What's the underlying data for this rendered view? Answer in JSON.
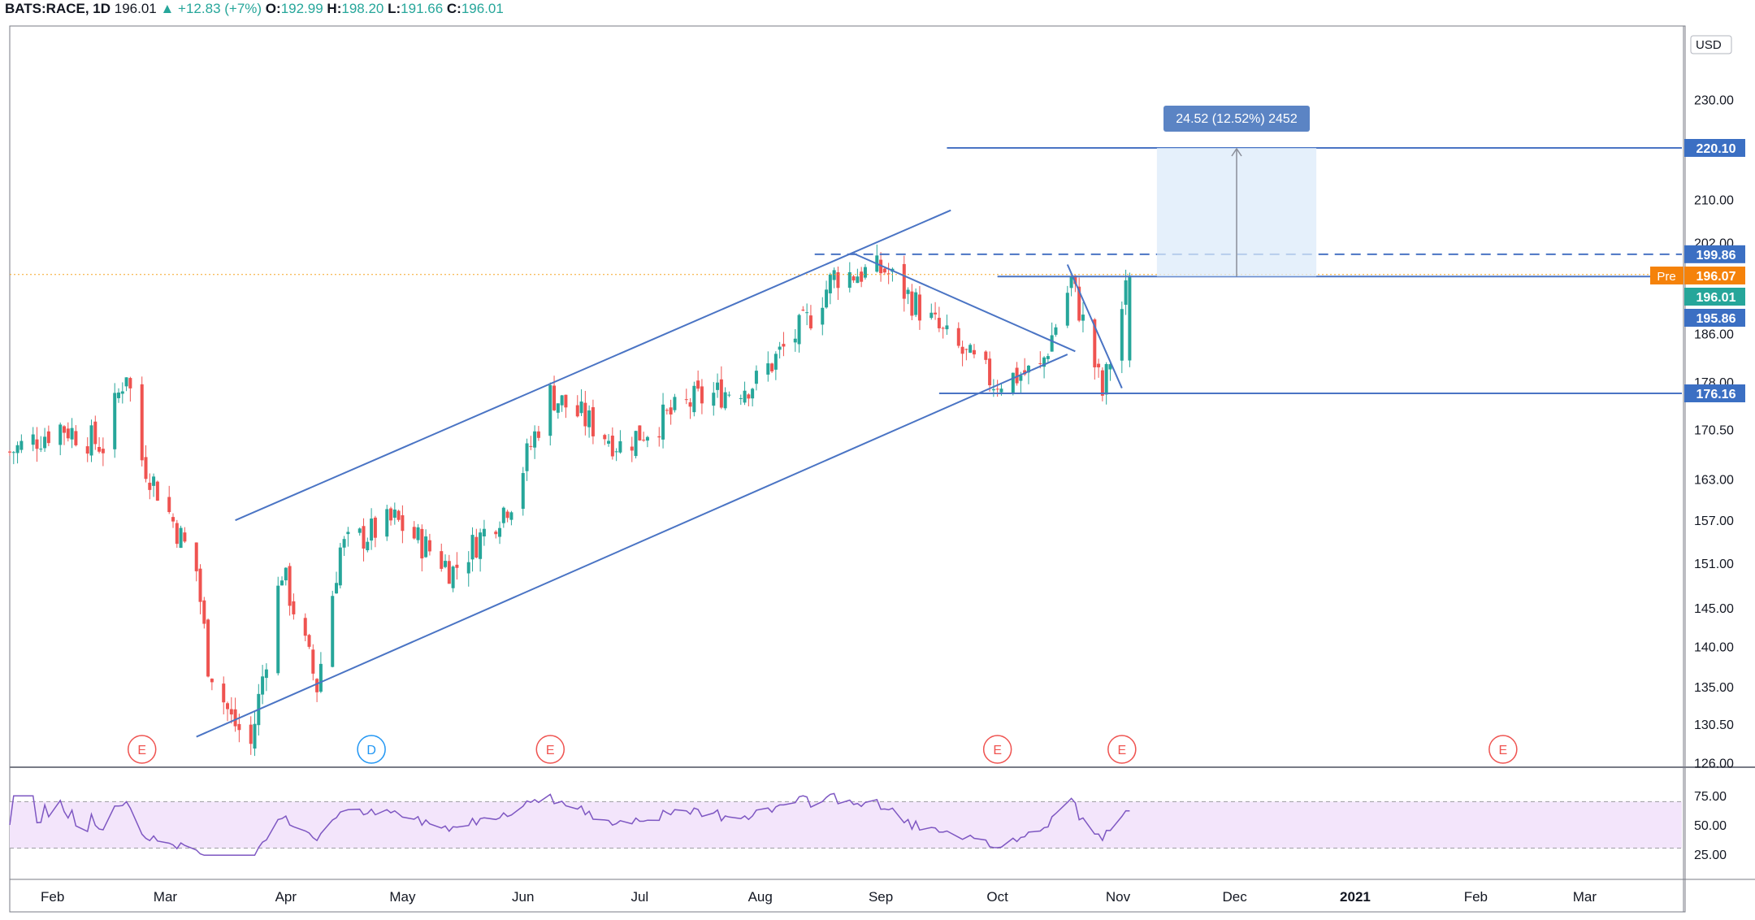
{
  "header": {
    "symbol": "BATS:RACE, 1D",
    "last": "196.01",
    "change": "▲ +12.83 (+7%)",
    "o_label": "O:",
    "o": "192.99",
    "h_label": "H:",
    "h": "198.20",
    "l_label": "L:",
    "l": "191.66",
    "c_label": "C:",
    "c": "196.01"
  },
  "currency": "USD",
  "price_axis_ticks": [
    "230.00",
    "210.00",
    "202.00",
    "186.00",
    "178.00",
    "170.50",
    "163.00",
    "157.00",
    "151.00",
    "145.00",
    "140.00",
    "135.00",
    "130.50",
    "126.00"
  ],
  "rsi_axis_ticks": [
    "75.00",
    "50.00",
    "25.00"
  ],
  "time_axis_labels": [
    "Feb",
    "Mar",
    "Apr",
    "May",
    "Jun",
    "Jul",
    "Aug",
    "Sep",
    "Oct",
    "Nov",
    "Dec",
    "2021",
    "Feb",
    "Mar"
  ],
  "price_tags": [
    {
      "text": "220.10",
      "color": "#3b6fc3"
    },
    {
      "text": "199.86",
      "color": "#3b6fc3"
    },
    {
      "text": "196.07",
      "color": "#f5820a",
      "prefix": "Pre"
    },
    {
      "text": "196.01",
      "color": "#26a69a"
    },
    {
      "text": "195.86",
      "color": "#3b6fc3"
    },
    {
      "text": "176.16",
      "color": "#3b6fc3"
    }
  ],
  "measure_label": "24.52 (12.52%) 2452",
  "event_markers": [
    "E",
    "D",
    "E",
    "E",
    "E",
    "E"
  ],
  "colors": {
    "up": "#26a69a",
    "down": "#ef5350",
    "line": "#4a74c4",
    "rsi": "#7e57c2",
    "rsi_band": "#f3e5fb"
  },
  "chart_data": {
    "type": "candlestick",
    "title": "BATS:RACE, 1D",
    "yaxis": {
      "scale": "log",
      "range": [
        125,
        245
      ],
      "unit": "USD"
    },
    "x_range": [
      "2020-01-21",
      "2021-03-26"
    ],
    "closing_prices_approx": [
      {
        "date": "2020-01-21",
        "close": 167
      },
      {
        "date": "2020-02-03",
        "close": 171
      },
      {
        "date": "2020-02-14",
        "close": 168
      },
      {
        "date": "2020-02-20",
        "close": 180
      },
      {
        "date": "2020-02-24",
        "close": 166
      },
      {
        "date": "2020-03-09",
        "close": 150
      },
      {
        "date": "2020-03-12",
        "close": 138
      },
      {
        "date": "2020-03-18",
        "close": 131
      },
      {
        "date": "2020-03-23",
        "close": 128
      },
      {
        "date": "2020-03-31",
        "close": 150
      },
      {
        "date": "2020-04-09",
        "close": 135
      },
      {
        "date": "2020-04-15",
        "close": 153
      },
      {
        "date": "2020-04-29",
        "close": 157
      },
      {
        "date": "2020-05-14",
        "close": 150
      },
      {
        "date": "2020-05-29",
        "close": 160
      },
      {
        "date": "2020-06-08",
        "close": 176
      },
      {
        "date": "2020-06-26",
        "close": 168
      },
      {
        "date": "2020-07-15",
        "close": 175
      },
      {
        "date": "2020-07-31",
        "close": 178
      },
      {
        "date": "2020-08-13",
        "close": 188
      },
      {
        "date": "2020-08-20",
        "close": 196
      },
      {
        "date": "2020-09-02",
        "close": 197
      },
      {
        "date": "2020-09-18",
        "close": 185
      },
      {
        "date": "2020-09-30",
        "close": 178
      },
      {
        "date": "2020-10-12",
        "close": 180
      },
      {
        "date": "2020-10-20",
        "close": 195
      },
      {
        "date": "2020-10-28",
        "close": 176
      },
      {
        "date": "2020-11-04",
        "close": 196.01
      }
    ],
    "drawn_levels": [
      220.1,
      199.86,
      195.86,
      176.16
    ],
    "last_close": 196.01,
    "premarket": 196.07,
    "rsi": {
      "overbought": 70,
      "oversold": 30,
      "range": [
        20,
        80
      ],
      "last": 62
    }
  }
}
